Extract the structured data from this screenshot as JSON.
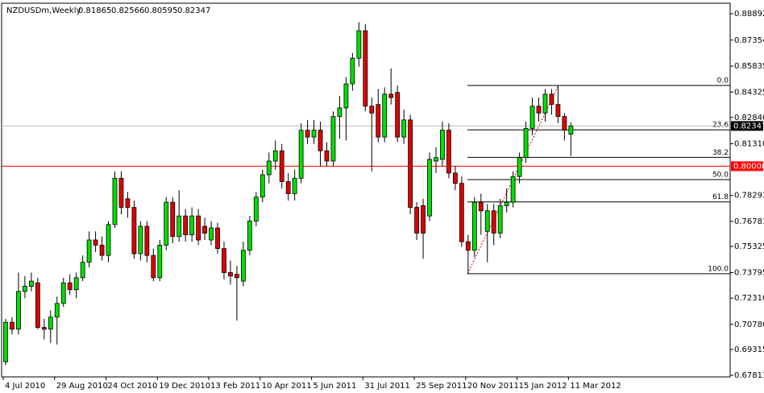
{
  "chart_data": {
    "type": "candlestick",
    "title": "NZDUSDm,Weekly",
    "categories": [
      "4 Jul 2010",
      null,
      null,
      null,
      null,
      null,
      null,
      null,
      "29 Aug 2010",
      null,
      null,
      null,
      null,
      null,
      null,
      null,
      "24 Oct 2010",
      null,
      null,
      null,
      null,
      null,
      null,
      null,
      "19 Dec 2010",
      null,
      null,
      null,
      null,
      null,
      null,
      null,
      "13 Feb 2011",
      null,
      null,
      null,
      null,
      null,
      null,
      null,
      "10 Apr 2011",
      null,
      null,
      null,
      null,
      null,
      null,
      null,
      "5 Jun 2011",
      null,
      null,
      null,
      null,
      null,
      null,
      null,
      "31 Jul 2011",
      null,
      null,
      null,
      null,
      null,
      null,
      null,
      "25 Sep 2011",
      null,
      null,
      null,
      null,
      null,
      null,
      null,
      "20 Nov 2011",
      null,
      null,
      null,
      null,
      null,
      null,
      null,
      "15 Jan 2012",
      null,
      null,
      null,
      null,
      null,
      null,
      null,
      "11 Mar 2012"
    ],
    "open": [
      0.686,
      0.709,
      0.705,
      0.727,
      0.73,
      0.732,
      0.706,
      0.705,
      0.712,
      0.72,
      0.732,
      0.728,
      0.735,
      0.744,
      0.757,
      0.754,
      0.748,
      0.766,
      0.793,
      0.781,
      0.776,
      0.749,
      0.765,
      0.748,
      0.735,
      0.754,
      0.779,
      0.759,
      0.771,
      0.76,
      0.771,
      0.765,
      0.757,
      0.764,
      0.752,
      0.738,
      0.737,
      0.733,
      0.751,
      0.768,
      0.782,
      0.795,
      0.803,
      0.809,
      0.791,
      0.784,
      0.793,
      0.821,
      0.817,
      0.821,
      0.809,
      0.803,
      0.829,
      0.834,
      0.848,
      0.863,
      0.879,
      0.835,
      0.836,
      0.817,
      0.842,
      0.843,
      0.817,
      0.827,
      0.776,
      0.777,
      0.771,
      0.803,
      0.804,
      0.821,
      0.796,
      0.79,
      0.756,
      0.751,
      0.779,
      0.762,
      0.774,
      0.761,
      0.777,
      0.779,
      0.794,
      0.805,
      0.822,
      0.835,
      0.831,
      0.842,
      0.836,
      0.829,
      0.81865
    ],
    "high": [
      0.711,
      0.712,
      0.738,
      0.736,
      0.738,
      0.735,
      0.711,
      0.716,
      0.724,
      0.735,
      0.737,
      0.738,
      0.748,
      0.762,
      0.762,
      0.759,
      0.768,
      0.797,
      0.797,
      0.785,
      0.78,
      0.768,
      0.768,
      0.752,
      0.757,
      0.782,
      0.782,
      0.786,
      0.775,
      0.776,
      0.775,
      0.77,
      0.768,
      0.767,
      0.756,
      0.745,
      0.742,
      0.756,
      0.771,
      0.785,
      0.798,
      0.808,
      0.815,
      0.813,
      0.796,
      0.798,
      0.825,
      0.827,
      0.827,
      0.826,
      0.814,
      0.832,
      0.841,
      0.852,
      0.866,
      0.884,
      0.883,
      0.84,
      0.845,
      0.846,
      0.857,
      0.847,
      0.833,
      0.83,
      0.779,
      0.781,
      0.808,
      0.811,
      0.826,
      0.825,
      0.8,
      0.794,
      0.76,
      0.782,
      0.784,
      0.778,
      0.778,
      0.781,
      0.787,
      0.797,
      0.808,
      0.826,
      0.84,
      0.84,
      0.845,
      0.845,
      0.847,
      0.831,
      0.82566
    ],
    "low": [
      0.684,
      0.702,
      0.702,
      0.723,
      0.727,
      0.705,
      0.699,
      0.697,
      0.696,
      0.718,
      0.725,
      0.723,
      0.733,
      0.741,
      0.75,
      0.745,
      0.744,
      0.764,
      0.772,
      0.77,
      0.746,
      0.745,
      0.744,
      0.733,
      0.733,
      0.751,
      0.755,
      0.756,
      0.756,
      0.756,
      0.754,
      0.757,
      0.754,
      0.749,
      0.734,
      0.731,
      0.71,
      0.73,
      0.748,
      0.765,
      0.779,
      0.79,
      0.798,
      0.787,
      0.78,
      0.78,
      0.79,
      0.813,
      0.813,
      0.8,
      0.8,
      0.8,
      0.816,
      0.815,
      0.844,
      0.858,
      0.832,
      0.797,
      0.814,
      0.814,
      0.836,
      0.814,
      0.813,
      0.772,
      0.757,
      0.746,
      0.768,
      0.796,
      0.8,
      0.793,
      0.786,
      0.753,
      0.7373,
      0.747,
      0.76,
      0.744,
      0.754,
      0.758,
      0.773,
      0.776,
      0.79,
      0.802,
      0.818,
      0.826,
      0.826,
      0.83,
      0.825,
      0.815,
      0.80595
    ],
    "close": [
      0.709,
      0.705,
      0.727,
      0.73,
      0.733,
      0.706,
      0.705,
      0.712,
      0.72,
      0.732,
      0.728,
      0.735,
      0.744,
      0.757,
      0.754,
      0.748,
      0.766,
      0.793,
      0.776,
      0.776,
      0.749,
      0.765,
      0.748,
      0.735,
      0.754,
      0.779,
      0.759,
      0.771,
      0.76,
      0.771,
      0.757,
      0.761,
      0.764,
      0.752,
      0.738,
      0.736,
      0.735,
      0.751,
      0.768,
      0.782,
      0.795,
      0.803,
      0.809,
      0.791,
      0.784,
      0.793,
      0.821,
      0.817,
      0.821,
      0.809,
      0.803,
      0.829,
      0.834,
      0.848,
      0.863,
      0.879,
      0.835,
      0.831,
      0.817,
      0.842,
      0.84,
      0.817,
      0.827,
      0.776,
      0.761,
      0.761,
      0.804,
      0.805,
      0.821,
      0.796,
      0.79,
      0.756,
      0.751,
      0.779,
      0.774,
      0.774,
      0.761,
      0.777,
      0.779,
      0.794,
      0.805,
      0.822,
      0.835,
      0.831,
      0.842,
      0.836,
      0.829,
      0.821,
      0.82347
    ],
    "up_color": "#00e000",
    "down_color": "#e00000",
    "ylim": [
      0.677171,
      0.895024
    ],
    "yticks": [
      0.88892,
      0.87354,
      0.85835,
      0.84325,
      {
        "value": 0.8284,
        "label": "0.82840"
      },
      {
        "value": 0.8131,
        "label": "0.81310"
      },
      0.78293,
      0.76781,
      0.75325,
      0.73795,
      {
        "value": 0.7231,
        "label": "0.72310"
      },
      {
        "value": 0.7078,
        "label": "0.70780"
      },
      0.69315,
      0.67811
    ],
    "hline": {
      "value": 0.8,
      "label": "0.80000",
      "color": "#ff0000"
    },
    "fibonacci": [
      {
        "level": "0.0",
        "price": 0.8471
      },
      {
        "level": "23.6",
        "price": 0.8212
      },
      {
        "level": "38.2",
        "price": 0.8052
      },
      {
        "level": "50.0",
        "price": 0.7922
      },
      {
        "level": "61.8",
        "price": 0.7792
      },
      {
        "level": "100.0",
        "price": 0.7373
      }
    ]
  }
}
